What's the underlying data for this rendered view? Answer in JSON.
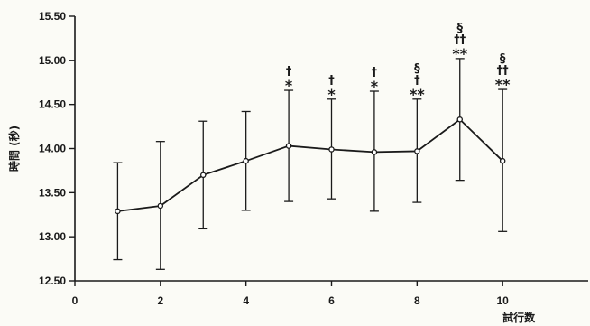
{
  "chart_data": {
    "type": "line",
    "title": "",
    "xlabel": "試行数",
    "ylabel": "時間 (秒)",
    "xlim": [
      0,
      12
    ],
    "ylim": [
      12.5,
      15.5
    ],
    "x_ticks": [
      "0",
      "2",
      "4",
      "6",
      "8",
      "10"
    ],
    "x_tick_values": [
      0,
      2,
      4,
      6,
      8,
      10
    ],
    "y_ticks": [
      "12.50",
      "13.00",
      "13.50",
      "14.00",
      "14.50",
      "15.00",
      "15.50"
    ],
    "y_tick_values": [
      12.5,
      13.0,
      13.5,
      14.0,
      14.5,
      15.0,
      15.5
    ],
    "grid": false,
    "series": [
      {
        "x": [
          1,
          2,
          3,
          4,
          5,
          6,
          7,
          8,
          9,
          10
        ],
        "values": [
          13.29,
          13.35,
          13.7,
          13.86,
          14.03,
          13.99,
          13.96,
          13.97,
          14.33,
          13.86
        ],
        "error_upper": [
          13.84,
          14.08,
          14.31,
          14.42,
          14.66,
          14.56,
          14.65,
          14.56,
          15.02,
          14.67
        ],
        "error_lower": [
          12.74,
          12.63,
          13.09,
          13.3,
          13.4,
          13.43,
          13.29,
          13.39,
          13.64,
          13.06
        ]
      }
    ],
    "annotations": [
      {
        "x": 5,
        "lines": [
          "†",
          "*"
        ]
      },
      {
        "x": 6,
        "lines": [
          "†",
          "*"
        ]
      },
      {
        "x": 7,
        "lines": [
          "†",
          "*"
        ]
      },
      {
        "x": 8,
        "lines": [
          "§",
          "†",
          "**"
        ]
      },
      {
        "x": 9,
        "lines": [
          "§",
          "††",
          "**"
        ]
      },
      {
        "x": 10,
        "lines": [
          "§",
          "††",
          "**"
        ]
      }
    ],
    "colors": {
      "line": "#1a1a1a",
      "marker_fill": "#ffffff",
      "axis": "#1a1a1a",
      "text": "#1a1a1a"
    }
  }
}
